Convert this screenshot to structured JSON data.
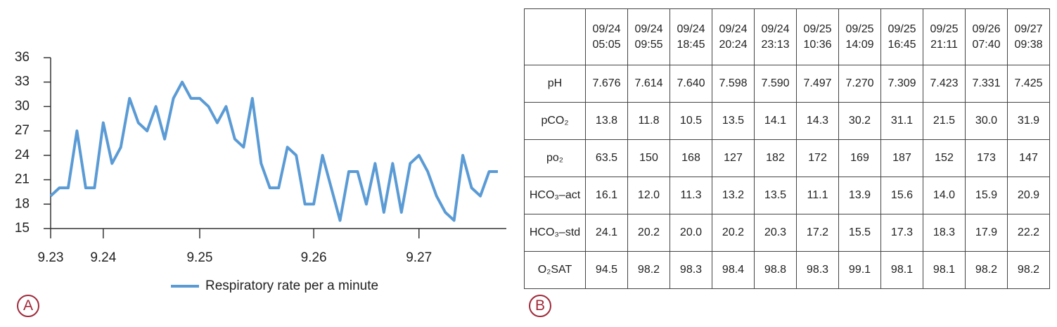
{
  "chart_data": {
    "type": "line",
    "categories": [
      "9.23",
      null,
      null,
      null,
      null,
      null,
      "9.24",
      null,
      null,
      null,
      null,
      null,
      null,
      null,
      null,
      null,
      null,
      "9.25",
      null,
      null,
      null,
      null,
      null,
      null,
      null,
      null,
      null,
      null,
      null,
      null,
      "9.26",
      null,
      null,
      null,
      null,
      null,
      null,
      null,
      null,
      null,
      null,
      null,
      "9.27",
      null,
      null,
      null,
      null,
      null,
      null,
      null,
      null,
      null
    ],
    "series": [
      {
        "name": "Respiratory rate per a minute",
        "color": "#5b9bd5",
        "values": [
          19,
          20,
          20,
          27,
          20,
          20,
          28,
          23,
          25,
          31,
          28,
          27,
          30,
          26,
          31,
          33,
          31,
          31,
          30,
          28,
          30,
          26,
          25,
          31,
          23,
          20,
          20,
          25,
          24,
          18,
          18,
          24,
          20,
          16,
          22,
          22,
          18,
          23,
          17,
          23,
          17,
          23,
          24,
          22,
          19,
          17,
          16,
          24,
          20,
          19,
          22,
          22
        ]
      }
    ],
    "ylim": [
      15,
      36
    ],
    "yticks": [
      15,
      18,
      21,
      24,
      27,
      30,
      33,
      36
    ],
    "legend": "bottom",
    "panel_label": "A"
  },
  "table": {
    "panel_label": "B",
    "columns": [
      {
        "date": "09/24",
        "time": "05:05"
      },
      {
        "date": "09/24",
        "time": "09:55"
      },
      {
        "date": "09/24",
        "time": "18:45"
      },
      {
        "date": "09/24",
        "time": "20:24"
      },
      {
        "date": "09/24",
        "time": "23:13"
      },
      {
        "date": "09/25",
        "time": "10:36"
      },
      {
        "date": "09/25",
        "time": "14:09"
      },
      {
        "date": "09/25",
        "time": "16:45"
      },
      {
        "date": "09/25",
        "time": "21:11"
      },
      {
        "date": "09/26",
        "time": "07:40"
      },
      {
        "date": "09/27",
        "time": "09:38"
      }
    ],
    "rows": [
      {
        "label": "pH",
        "cells": [
          "7.676",
          "7.614",
          "7.640",
          "7.598",
          "7.590",
          "7.497",
          "7.270",
          "7.309",
          "7.423",
          "7.331",
          "7.425"
        ]
      },
      {
        "label": "pCO₂",
        "cells": [
          "13.8",
          "11.8",
          "10.5",
          "13.5",
          "14.1",
          "14.3",
          "30.2",
          "31.1",
          "21.5",
          "30.0",
          "31.9"
        ]
      },
      {
        "label": "po₂",
        "cells": [
          "63.5",
          "150",
          "168",
          "127",
          "182",
          "172",
          "169",
          "187",
          "152",
          "173",
          "147"
        ]
      },
      {
        "label": "HCO₃–act",
        "cells": [
          "16.1",
          "12.0",
          "11.3",
          "13.2",
          "13.5",
          "11.1",
          "13.9",
          "15.6",
          "14.0",
          "15.9",
          "20.9"
        ]
      },
      {
        "label": "HCO₃–std",
        "cells": [
          "24.1",
          "20.2",
          "20.0",
          "20.2",
          "20.3",
          "17.2",
          "15.5",
          "17.3",
          "18.3",
          "17.9",
          "22.2"
        ]
      },
      {
        "label": "O₂SAT",
        "cells": [
          "94.5",
          "98.2",
          "98.3",
          "98.4",
          "98.8",
          "98.3",
          "99.1",
          "98.1",
          "98.1",
          "98.2",
          "98.2"
        ]
      }
    ]
  }
}
